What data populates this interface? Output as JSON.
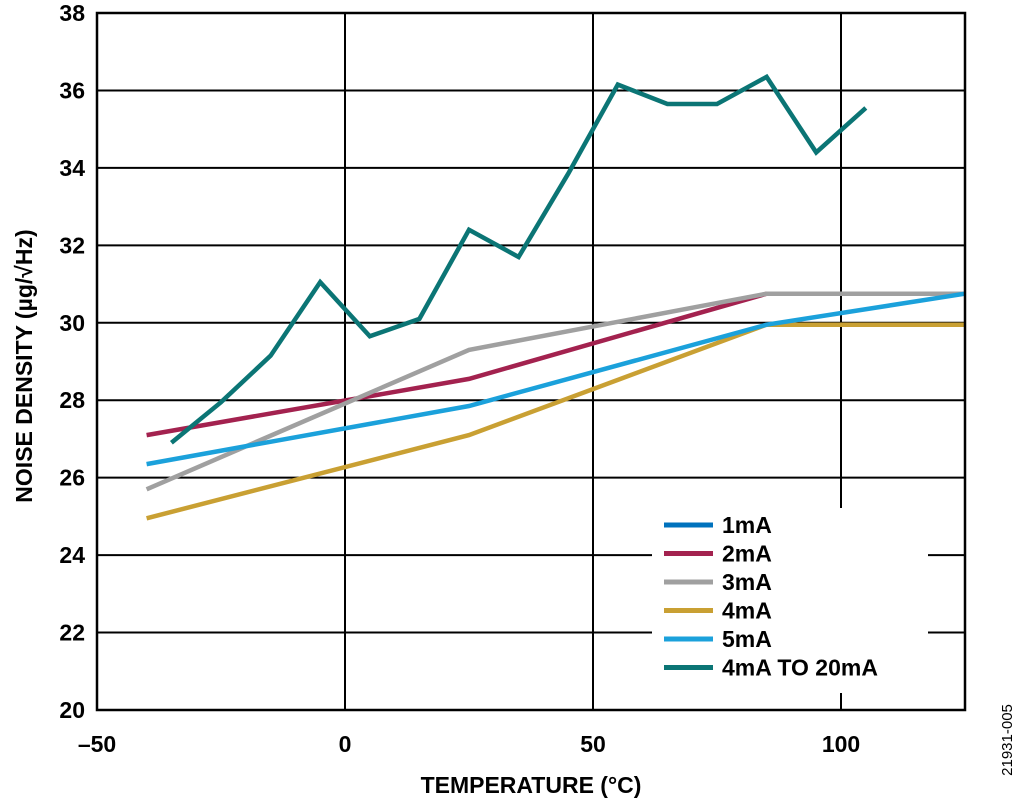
{
  "figure_id": "21931-005",
  "chart_data": {
    "type": "line",
    "title": "",
    "xlabel": "TEMPERATURE (°C)",
    "ylabel": "NOISE DENSITY (µg/√Hz)",
    "xlim": [
      -50,
      125
    ],
    "ylim": [
      20,
      38
    ],
    "xticks": [
      -50,
      0,
      50,
      100
    ],
    "xtick_labels": [
      "–50",
      "0",
      "50",
      "100"
    ],
    "yticks": [
      20,
      22,
      24,
      26,
      28,
      30,
      32,
      34,
      36,
      38
    ],
    "ytick_labels": [
      "20",
      "22",
      "24",
      "26",
      "28",
      "30",
      "32",
      "34",
      "36",
      "38"
    ],
    "grid": true,
    "legend_position": "bottom-right",
    "series": [
      {
        "name": "1mA",
        "color": "#0072BD",
        "x": [],
        "y": []
      },
      {
        "name": "2mA",
        "color": "#A3224F",
        "x": [
          -40,
          25,
          85,
          125
        ],
        "y": [
          27.1,
          28.55,
          30.75,
          30.75
        ]
      },
      {
        "name": "3mA",
        "color": "#A0A0A0",
        "x": [
          -40,
          25,
          85,
          125
        ],
        "y": [
          25.7,
          29.3,
          30.75,
          30.75
        ]
      },
      {
        "name": "4mA",
        "color": "#C9A033",
        "x": [
          -40,
          25,
          85,
          125
        ],
        "y": [
          24.95,
          27.1,
          29.95,
          29.95
        ]
      },
      {
        "name": "5mA",
        "color": "#1BA1DB",
        "x": [
          -40,
          25,
          85,
          125
        ],
        "y": [
          26.35,
          27.85,
          29.95,
          30.75
        ]
      },
      {
        "name": "4mA TO 20mA",
        "color": "#0B7575",
        "x": [
          -35,
          -25,
          -15,
          -5,
          5,
          15,
          25,
          35,
          45,
          55,
          65,
          75,
          85,
          95,
          105
        ],
        "y": [
          26.9,
          27.95,
          29.15,
          31.05,
          29.65,
          30.1,
          32.4,
          31.7,
          33.85,
          36.15,
          35.65,
          35.65,
          36.35,
          34.4,
          35.55
        ]
      }
    ]
  }
}
